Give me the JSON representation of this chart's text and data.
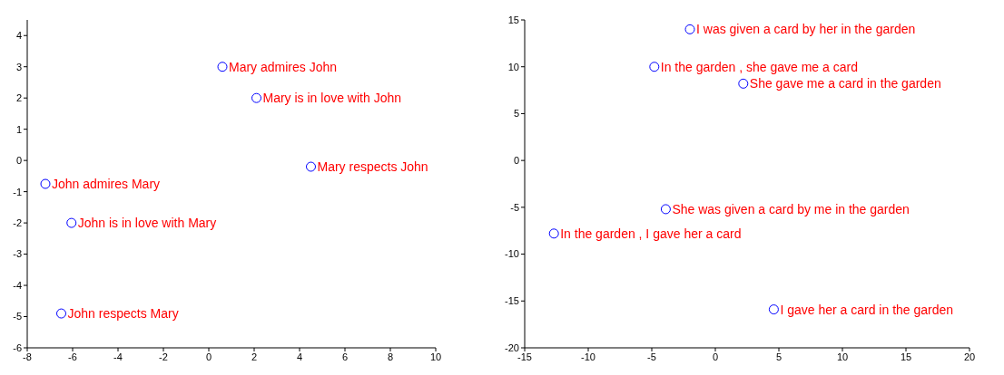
{
  "chart_data": [
    {
      "type": "scatter",
      "x": [
        0.6,
        2.1,
        4.5,
        -7.2,
        -6.05,
        -6.5
      ],
      "values": [
        3.0,
        2.0,
        -0.2,
        -0.75,
        -2.0,
        -4.9
      ],
      "color": "#0000ff",
      "marker": "circle",
      "xlim": [
        -8,
        10
      ],
      "xticks": [
        -8,
        -6,
        -4,
        -2,
        0,
        2,
        4,
        6,
        8,
        10
      ],
      "ylim": [
        -6,
        4.5
      ],
      "yticks": [
        -6,
        -5,
        -4,
        -3,
        -2,
        -1,
        0,
        1,
        2,
        3,
        4
      ],
      "annotations": [
        {
          "text": "Mary admires John",
          "x": 0.6,
          "y": 3.0
        },
        {
          "text": "Mary is in love with John",
          "x": 2.1,
          "y": 2.0
        },
        {
          "text": "Mary respects John",
          "x": 4.5,
          "y": -0.2
        },
        {
          "text": "John admires Mary",
          "x": -7.2,
          "y": -0.75
        },
        {
          "text": "John is in love with Mary",
          "x": -6.05,
          "y": -2.0
        },
        {
          "text": "John respects Mary",
          "x": -6.5,
          "y": -4.9
        }
      ]
    },
    {
      "type": "scatter",
      "x": [
        -2.0,
        -4.8,
        2.2,
        -3.9,
        -12.7,
        4.6
      ],
      "values": [
        14.0,
        10.0,
        8.2,
        -5.2,
        -7.8,
        -15.9
      ],
      "color": "#0000ff",
      "marker": "circle",
      "xlim": [
        -15,
        20
      ],
      "xticks": [
        -15,
        -10,
        -5,
        0,
        5,
        10,
        15,
        20
      ],
      "ylim": [
        -20,
        15
      ],
      "yticks": [
        -20,
        -15,
        -10,
        -5,
        0,
        5,
        10,
        15
      ],
      "annotations": [
        {
          "text": "I was given a card by her in the garden",
          "x": -2.0,
          "y": 14.0
        },
        {
          "text": "In the garden , she gave me a card",
          "x": -4.8,
          "y": 10.0
        },
        {
          "text": "She gave me a card in the garden",
          "x": 2.2,
          "y": 8.2
        },
        {
          "text": "She was given a card by me in the garden",
          "x": -3.9,
          "y": -5.2
        },
        {
          "text": "In the garden , I gave her a card",
          "x": -12.7,
          "y": -7.8
        },
        {
          "text": "I gave her a card in the garden",
          "x": 4.6,
          "y": -15.9
        }
      ]
    }
  ]
}
